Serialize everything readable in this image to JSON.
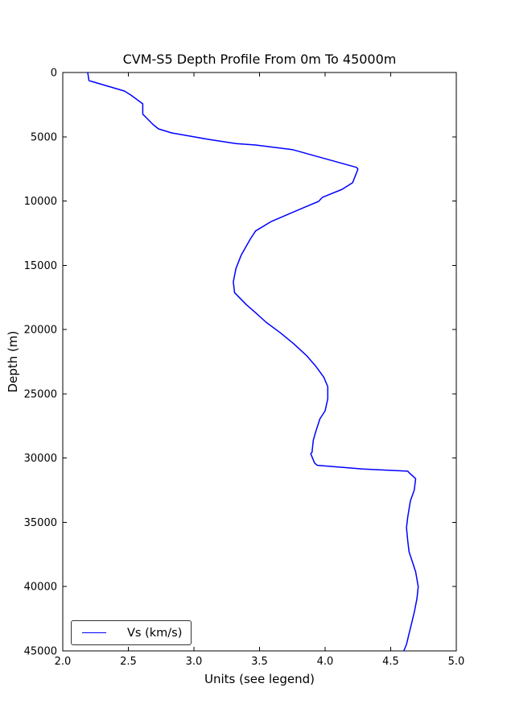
{
  "figure": {
    "title": "CVM-S5 Depth Profile From 0m To 45000m",
    "xlabel": "Units (see legend)",
    "ylabel": "Depth (m)",
    "legend": {
      "label": "Vs (km/s)"
    }
  },
  "colors": {
    "line": "#0000ff",
    "axis": "#000000",
    "background": "#ffffff",
    "legend_border": "#333333"
  },
  "chart_data": {
    "type": "line",
    "title": "CVM-S5 Depth Profile From 0m To 45000m",
    "xlabel": "Units (see legend)",
    "ylabel": "Depth (m)",
    "xlim": [
      2.0,
      5.0
    ],
    "ylim": [
      0,
      45000
    ],
    "y_inverted": true,
    "grid": false,
    "legend_position": "lower left",
    "x_ticks": [
      2.0,
      2.5,
      3.0,
      3.5,
      4.0,
      4.5,
      5.0
    ],
    "x_tick_labels": [
      "2.0",
      "2.5",
      "3.0",
      "3.5",
      "4.0",
      "4.5",
      "5.0"
    ],
    "y_ticks": [
      0,
      5000,
      10000,
      15000,
      20000,
      25000,
      30000,
      35000,
      40000,
      45000
    ],
    "y_tick_labels": [
      "0",
      "5000",
      "10000",
      "15000",
      "20000",
      "25000",
      "30000",
      "35000",
      "40000",
      "45000"
    ],
    "series": [
      {
        "name": "Vs (km/s)",
        "color": "#0000ff",
        "x_is_value": "Vs in km/s",
        "y_is_value": "depth in m",
        "points": [
          [
            2.19,
            0
          ],
          [
            2.2,
            630
          ],
          [
            2.47,
            1440
          ],
          [
            2.52,
            1760
          ],
          [
            2.61,
            2440
          ],
          [
            2.61,
            3240
          ],
          [
            2.64,
            3550
          ],
          [
            2.69,
            4070
          ],
          [
            2.73,
            4390
          ],
          [
            2.83,
            4700
          ],
          [
            2.98,
            4970
          ],
          [
            3.12,
            5220
          ],
          [
            3.32,
            5530
          ],
          [
            3.47,
            5640
          ],
          [
            3.75,
            6000
          ],
          [
            4.24,
            7380
          ],
          [
            4.25,
            7520
          ],
          [
            4.23,
            8040
          ],
          [
            4.21,
            8570
          ],
          [
            4.13,
            9090
          ],
          [
            3.98,
            9710
          ],
          [
            3.95,
            10030
          ],
          [
            3.78,
            10760
          ],
          [
            3.59,
            11590
          ],
          [
            3.47,
            12330
          ],
          [
            3.43,
            12950
          ],
          [
            3.36,
            14210
          ],
          [
            3.32,
            15250
          ],
          [
            3.3,
            16290
          ],
          [
            3.31,
            17130
          ],
          [
            3.34,
            17440
          ],
          [
            3.4,
            18070
          ],
          [
            3.47,
            18690
          ],
          [
            3.55,
            19430
          ],
          [
            3.66,
            20260
          ],
          [
            3.76,
            21100
          ],
          [
            3.86,
            22040
          ],
          [
            3.93,
            22870
          ],
          [
            3.99,
            23710
          ],
          [
            4.02,
            24440
          ],
          [
            4.02,
            25380
          ],
          [
            4.0,
            26320
          ],
          [
            3.96,
            26950
          ],
          [
            3.93,
            27890
          ],
          [
            3.91,
            28620
          ],
          [
            3.9,
            29560
          ],
          [
            3.89,
            29660
          ],
          [
            3.92,
            30390
          ],
          [
            3.94,
            30560
          ],
          [
            4.29,
            30850
          ],
          [
            4.63,
            31020
          ],
          [
            4.64,
            31130
          ],
          [
            4.69,
            31600
          ],
          [
            4.68,
            32480
          ],
          [
            4.65,
            33320
          ],
          [
            4.64,
            33950
          ],
          [
            4.63,
            34570
          ],
          [
            4.62,
            35410
          ],
          [
            4.63,
            36450
          ],
          [
            4.64,
            37290
          ],
          [
            4.66,
            37910
          ],
          [
            4.69,
            38850
          ],
          [
            4.71,
            40000
          ],
          [
            4.7,
            40940
          ],
          [
            4.68,
            41990
          ],
          [
            4.66,
            42820
          ],
          [
            4.64,
            43660
          ],
          [
            4.62,
            44490
          ],
          [
            4.6,
            45000
          ]
        ]
      }
    ]
  }
}
